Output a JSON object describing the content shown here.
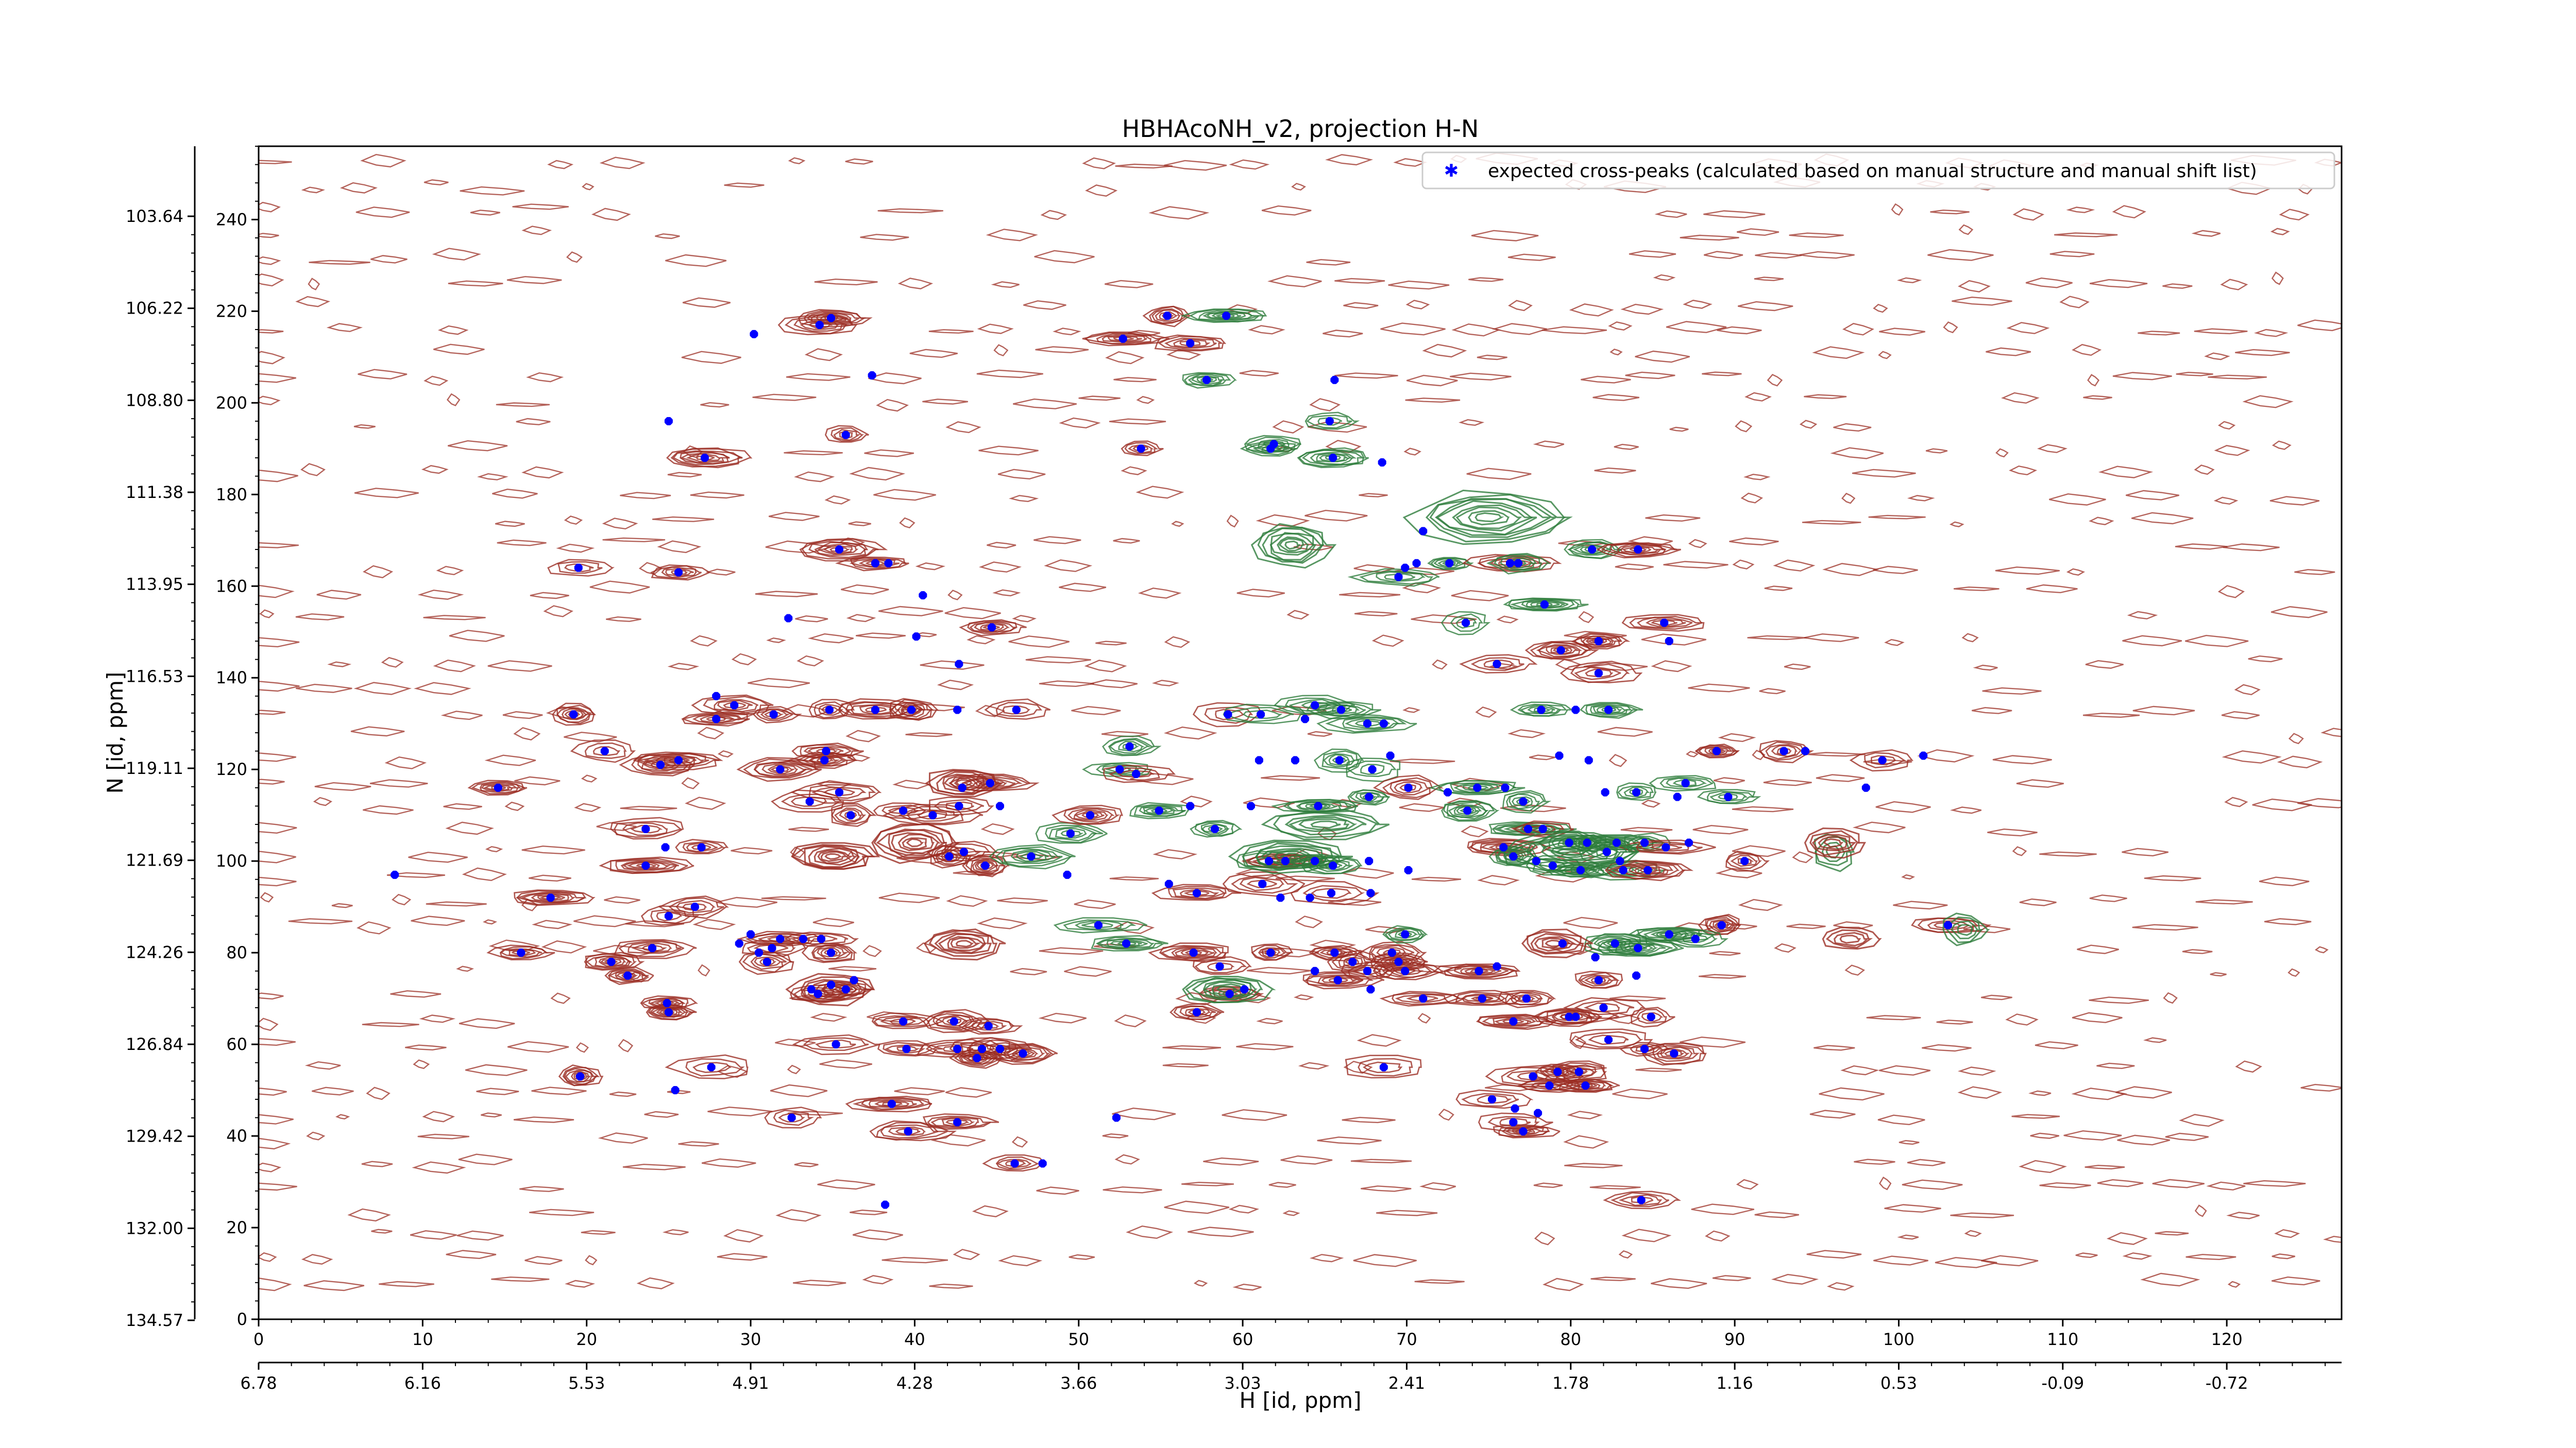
{
  "chart_data": {
    "type": "scatter",
    "title": "HBHAcoNH_v2, projection H-N",
    "xlabel": "H [id, ppm]",
    "ylabel": "N [id, ppm]",
    "xlim": [
      0,
      127
    ],
    "ylim": [
      0,
      256
    ],
    "x_ticks": [
      0,
      10,
      20,
      30,
      40,
      50,
      60,
      70,
      80,
      90,
      100,
      110,
      120
    ],
    "y_ticks": [
      0,
      20,
      40,
      60,
      80,
      100,
      120,
      140,
      160,
      180,
      200,
      220,
      240
    ],
    "h_ppm_ticks": [
      "6.78",
      "6.16",
      "5.53",
      "4.91",
      "4.28",
      "3.66",
      "3.03",
      "2.41",
      "1.78",
      "1.16",
      "0.53",
      "-0.09",
      "-0.72"
    ],
    "n_ppm_ticks": [
      "103.64",
      "106.22",
      "108.80",
      "111.38",
      "113.95",
      "116.53",
      "119.11",
      "121.69",
      "124.26",
      "126.84",
      "129.42",
      "132.00",
      "134.57"
    ],
    "legend": {
      "label": "expected cross-peaks (calculated based on manual structure and manual shift list)",
      "position": "top-right"
    },
    "grid": false,
    "colors": {
      "positive_contours": "#9b2d23",
      "negative_contours": "#2e7d3c",
      "peak_marker": "#0000ff"
    },
    "series": [
      {
        "name": "expected cross-peaks (calculated based on manual structure and manual shift list)",
        "points": [
          [
            30.2,
            215
          ],
          [
            34.2,
            217
          ],
          [
            34.9,
            218.5
          ],
          [
            37.4,
            206
          ],
          [
            35.8,
            193
          ],
          [
            25,
            196
          ],
          [
            27.2,
            188
          ],
          [
            19.5,
            164
          ],
          [
            25.6,
            163
          ],
          [
            35.4,
            168
          ],
          [
            37.6,
            165
          ],
          [
            38.4,
            165
          ],
          [
            40.5,
            158
          ],
          [
            32.3,
            153
          ],
          [
            40.1,
            149
          ],
          [
            44.7,
            151
          ],
          [
            42.7,
            143
          ],
          [
            19.2,
            132
          ],
          [
            27.9,
            136
          ],
          [
            29,
            134
          ],
          [
            27.9,
            131
          ],
          [
            31.4,
            132
          ],
          [
            34.8,
            133
          ],
          [
            37.6,
            133
          ],
          [
            39.8,
            133
          ],
          [
            42.6,
            133
          ],
          [
            46.2,
            133
          ],
          [
            21.1,
            124
          ],
          [
            24.5,
            121
          ],
          [
            25.6,
            122
          ],
          [
            14.6,
            116
          ],
          [
            31.8,
            120
          ],
          [
            34.5,
            122
          ],
          [
            34.6,
            124
          ],
          [
            35.4,
            115
          ],
          [
            42.9,
            116
          ],
          [
            44.6,
            117
          ],
          [
            33.6,
            113
          ],
          [
            36.1,
            110
          ],
          [
            39.3,
            111
          ],
          [
            41.1,
            110
          ],
          [
            42.7,
            112
          ],
          [
            45.2,
            112
          ],
          [
            8.3,
            97
          ],
          [
            23.6,
            107
          ],
          [
            24.8,
            103
          ],
          [
            27,
            103
          ],
          [
            23.6,
            99
          ],
          [
            42.1,
            101
          ],
          [
            43,
            102
          ],
          [
            44.3,
            99
          ],
          [
            17.8,
            92
          ],
          [
            25,
            88
          ],
          [
            26.6,
            90
          ],
          [
            16,
            80
          ],
          [
            21.5,
            78
          ],
          [
            22.5,
            75
          ],
          [
            24,
            81
          ],
          [
            29.3,
            82
          ],
          [
            30,
            84
          ],
          [
            30.5,
            80
          ],
          [
            31,
            78
          ],
          [
            31.3,
            81
          ],
          [
            31.8,
            83
          ],
          [
            33.2,
            83
          ],
          [
            34.3,
            83
          ],
          [
            34.9,
            80
          ],
          [
            33.7,
            72
          ],
          [
            34.1,
            71
          ],
          [
            34.9,
            73
          ],
          [
            35.8,
            72
          ],
          [
            36.3,
            74
          ],
          [
            24.9,
            69
          ],
          [
            25,
            67
          ],
          [
            35.2,
            60
          ],
          [
            39.3,
            65
          ],
          [
            42.4,
            65
          ],
          [
            44.5,
            64
          ],
          [
            19.6,
            53
          ],
          [
            25.4,
            50
          ],
          [
            27.6,
            55
          ],
          [
            32.5,
            44
          ],
          [
            38.6,
            47
          ],
          [
            39.6,
            41
          ],
          [
            42.6,
            43
          ],
          [
            46.1,
            34
          ],
          [
            47.8,
            34
          ],
          [
            38.2,
            25
          ],
          [
            52.7,
            214
          ],
          [
            55.4,
            219
          ],
          [
            59,
            219
          ],
          [
            56.8,
            213
          ],
          [
            57.8,
            205
          ],
          [
            65.6,
            205
          ],
          [
            61.9,
            191
          ],
          [
            65.3,
            196
          ],
          [
            53.8,
            190
          ],
          [
            61.7,
            190
          ],
          [
            65.5,
            188
          ],
          [
            68.5,
            187
          ],
          [
            71,
            172
          ],
          [
            69.9,
            164
          ],
          [
            70.6,
            165
          ],
          [
            69.5,
            162
          ],
          [
            72.6,
            165
          ],
          [
            76.3,
            165
          ],
          [
            76.8,
            165
          ],
          [
            78.4,
            156
          ],
          [
            75.5,
            143
          ],
          [
            73.6,
            152
          ],
          [
            79.4,
            146
          ],
          [
            81.3,
            168
          ],
          [
            84.1,
            168
          ],
          [
            81.7,
            148
          ],
          [
            85.7,
            152
          ],
          [
            86,
            148
          ],
          [
            81.7,
            141
          ],
          [
            78.2,
            133
          ],
          [
            80.3,
            133
          ],
          [
            82.3,
            133
          ],
          [
            79.3,
            123
          ],
          [
            81.1,
            122
          ],
          [
            82.1,
            115
          ],
          [
            84,
            115
          ],
          [
            87,
            117
          ],
          [
            86.5,
            114
          ],
          [
            89.6,
            114
          ],
          [
            88.9,
            124
          ],
          [
            93,
            124
          ],
          [
            94.3,
            124
          ],
          [
            99,
            122
          ],
          [
            53.1,
            125
          ],
          [
            52.5,
            120
          ],
          [
            53.5,
            119
          ],
          [
            59.1,
            132
          ],
          [
            61.1,
            132
          ],
          [
            64.4,
            134
          ],
          [
            66,
            133
          ],
          [
            63.8,
            131
          ],
          [
            67.6,
            130
          ],
          [
            68.6,
            130
          ],
          [
            61,
            122
          ],
          [
            63.2,
            122
          ],
          [
            65.9,
            122
          ],
          [
            69,
            123
          ],
          [
            67.9,
            120
          ],
          [
            49.5,
            106
          ],
          [
            50.7,
            110
          ],
          [
            54.9,
            111
          ],
          [
            56.8,
            112
          ],
          [
            58.3,
            107
          ],
          [
            60.5,
            112
          ],
          [
            64.6,
            112
          ],
          [
            67.7,
            114
          ],
          [
            70.1,
            116
          ],
          [
            72.5,
            115
          ],
          [
            74.3,
            116
          ],
          [
            76,
            116
          ],
          [
            73.7,
            111
          ],
          [
            77.1,
            113
          ],
          [
            77.4,
            107
          ],
          [
            78.3,
            107
          ],
          [
            79.9,
            104
          ],
          [
            81,
            104
          ],
          [
            82.8,
            104
          ],
          [
            84.5,
            104
          ],
          [
            85.8,
            103
          ],
          [
            87.2,
            104
          ],
          [
            90.6,
            100
          ],
          [
            75.9,
            103
          ],
          [
            76.5,
            101
          ],
          [
            77.9,
            100
          ],
          [
            78.9,
            99
          ],
          [
            80.6,
            98
          ],
          [
            82.2,
            102
          ],
          [
            83,
            100
          ],
          [
            83.2,
            98
          ],
          [
            84.7,
            98
          ],
          [
            49.3,
            97
          ],
          [
            47.1,
            101
          ],
          [
            61.6,
            100
          ],
          [
            62.6,
            100
          ],
          [
            64.4,
            100
          ],
          [
            65.5,
            99
          ],
          [
            67.7,
            100
          ],
          [
            70.1,
            98
          ],
          [
            57.2,
            93
          ],
          [
            55.5,
            95
          ],
          [
            61.2,
            95
          ],
          [
            62.3,
            92
          ],
          [
            64.1,
            92
          ],
          [
            65.4,
            93
          ],
          [
            67.8,
            93
          ],
          [
            51.2,
            86
          ],
          [
            52.9,
            82
          ],
          [
            57,
            80
          ],
          [
            58.6,
            77
          ],
          [
            61.7,
            80
          ],
          [
            64.4,
            76
          ],
          [
            65.6,
            80
          ],
          [
            65.8,
            74
          ],
          [
            67.6,
            76
          ],
          [
            66.7,
            78
          ],
          [
            69.1,
            80
          ],
          [
            69.5,
            78
          ],
          [
            69.9,
            76
          ],
          [
            74.4,
            76
          ],
          [
            75.5,
            77
          ],
          [
            79.5,
            82
          ],
          [
            82.7,
            82
          ],
          [
            81.5,
            79
          ],
          [
            84.1,
            81
          ],
          [
            81.7,
            74
          ],
          [
            84,
            75
          ],
          [
            89.2,
            86
          ],
          [
            87.6,
            83
          ],
          [
            86,
            84
          ],
          [
            69.9,
            84
          ],
          [
            59.2,
            71
          ],
          [
            57.2,
            67
          ],
          [
            60.1,
            72
          ],
          [
            67.8,
            72
          ],
          [
            71,
            70
          ],
          [
            74.6,
            70
          ],
          [
            76.5,
            65
          ],
          [
            77.3,
            70
          ],
          [
            79.9,
            66
          ],
          [
            82,
            68
          ],
          [
            84.5,
            59
          ],
          [
            86.3,
            58
          ],
          [
            84.9,
            66
          ],
          [
            80.3,
            66
          ],
          [
            44.1,
            59
          ],
          [
            45.2,
            59
          ],
          [
            42.6,
            59
          ],
          [
            43.8,
            57
          ],
          [
            46.6,
            58
          ],
          [
            39.5,
            59
          ],
          [
            77.7,
            53
          ],
          [
            79.2,
            54
          ],
          [
            80.5,
            54
          ],
          [
            78.7,
            51
          ],
          [
            80.9,
            51
          ],
          [
            68.6,
            55
          ],
          [
            75.2,
            48
          ],
          [
            76.5,
            43
          ],
          [
            76.6,
            46
          ],
          [
            77.1,
            41
          ],
          [
            78,
            45
          ],
          [
            52.3,
            44
          ],
          [
            84.3,
            26
          ],
          [
            103,
            86
          ],
          [
            98,
            116
          ],
          [
            82.3,
            61
          ],
          [
            101.5,
            123
          ]
        ]
      }
    ]
  }
}
